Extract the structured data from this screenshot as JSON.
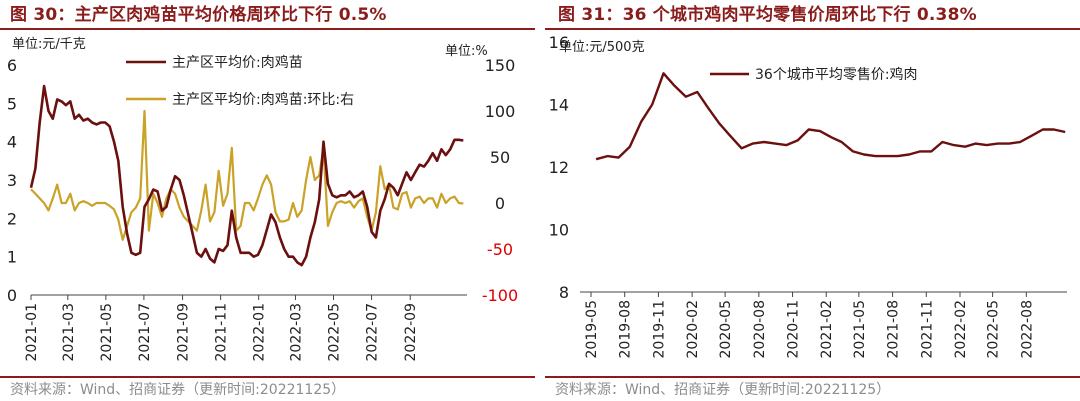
{
  "left": {
    "figure_title": "图 30：主产区肉鸡苗平均价格周环比下行 0.5%",
    "source": "资料来源：Wind、招商证券（更新时间:20221125）",
    "colors": {
      "line1": "#6b0f0f",
      "line2": "#c9a227",
      "right_negative_tick": "#e00000",
      "title": "#8a1c1c"
    }
  },
  "right": {
    "figure_title": "图 31：36 个城市鸡肉平均零售价周环比下行 0.38%",
    "source": "资料来源：Wind、招商证券（更新时间:20221125）",
    "colors": {
      "line1": "#6b0f0f"
    }
  },
  "chart_data": [
    {
      "type": "line",
      "ylabel": "单位:元/千克",
      "ylabel_right": "单位:%",
      "ylim": [
        0,
        6
      ],
      "ylim_right": [
        -100,
        150
      ],
      "yticks": [
        "0",
        "1",
        "2",
        "3",
        "4",
        "5",
        "6"
      ],
      "yticks_right": [
        "-100",
        "-50",
        "0",
        "50",
        "100",
        "150"
      ],
      "xticks": [
        "2021-01",
        "2021-03",
        "2021-05",
        "2021-07",
        "2021-09",
        "2021-11",
        "2022-01",
        "2022-03",
        "2022-05",
        "2022-07",
        "2022-09"
      ],
      "legend": "top-center",
      "grid": false,
      "series": [
        {
          "name": "主产区平均价:肉鸡苗",
          "axis": "left",
          "x": [
            "2021-01-01",
            "2021-01-08",
            "2021-01-15",
            "2021-01-22",
            "2021-01-29",
            "2021-02-05",
            "2021-02-12",
            "2021-02-19",
            "2021-02-26",
            "2021-03-05",
            "2021-03-12",
            "2021-03-19",
            "2021-03-26",
            "2021-04-02",
            "2021-04-09",
            "2021-04-16",
            "2021-04-23",
            "2021-04-30",
            "2021-05-07",
            "2021-05-14",
            "2021-05-21",
            "2021-05-28",
            "2021-06-04",
            "2021-06-11",
            "2021-06-18",
            "2021-06-25",
            "2021-07-02",
            "2021-07-09",
            "2021-07-16",
            "2021-07-23",
            "2021-07-30",
            "2021-08-06",
            "2021-08-13",
            "2021-08-20",
            "2021-08-27",
            "2021-09-03",
            "2021-09-10",
            "2021-09-17",
            "2021-09-24",
            "2021-10-01",
            "2021-10-08",
            "2021-10-15",
            "2021-10-22",
            "2021-10-29",
            "2021-11-05",
            "2021-11-12",
            "2021-11-19",
            "2021-11-26",
            "2021-12-03",
            "2021-12-10",
            "2021-12-17",
            "2021-12-24",
            "2021-12-31",
            "2022-01-07",
            "2022-01-14",
            "2022-01-21",
            "2022-01-28",
            "2022-02-04",
            "2022-02-11",
            "2022-02-18",
            "2022-02-25",
            "2022-03-04",
            "2022-03-11",
            "2022-03-18",
            "2022-03-25",
            "2022-04-01",
            "2022-04-08",
            "2022-04-15",
            "2022-04-22",
            "2022-04-29",
            "2022-05-06",
            "2022-05-13",
            "2022-05-20",
            "2022-05-27",
            "2022-06-03",
            "2022-06-10",
            "2022-06-17",
            "2022-06-24",
            "2022-07-01",
            "2022-07-08",
            "2022-07-15",
            "2022-07-22",
            "2022-07-29",
            "2022-08-05",
            "2022-08-12",
            "2022-08-19",
            "2022-08-26",
            "2022-09-02",
            "2022-09-09",
            "2022-09-16",
            "2022-09-23",
            "2022-09-30",
            "2022-10-07",
            "2022-10-14",
            "2022-10-21",
            "2022-10-28",
            "2022-11-04",
            "2022-11-11",
            "2022-11-18",
            "2022-11-25"
          ],
          "values": [
            2.8,
            3.3,
            4.5,
            5.45,
            4.8,
            4.6,
            5.1,
            5.05,
            4.95,
            5.05,
            4.6,
            4.7,
            4.55,
            4.6,
            4.5,
            4.45,
            4.5,
            4.5,
            4.4,
            4.0,
            3.5,
            2.3,
            1.6,
            1.1,
            1.05,
            1.1,
            2.3,
            2.5,
            2.75,
            2.7,
            2.2,
            2.3,
            2.75,
            3.1,
            3.0,
            2.6,
            2.1,
            1.6,
            1.1,
            1.0,
            1.2,
            0.95,
            0.85,
            1.2,
            1.15,
            1.3,
            2.2,
            1.5,
            1.1,
            1.1,
            1.1,
            1.0,
            1.05,
            1.3,
            1.7,
            2.1,
            1.9,
            1.5,
            1.2,
            1.0,
            1.0,
            0.85,
            0.78,
            1.0,
            1.5,
            1.9,
            2.5,
            4.0,
            2.9,
            2.6,
            2.55,
            2.6,
            2.6,
            2.7,
            2.55,
            2.6,
            2.7,
            2.3,
            1.65,
            1.5,
            2.2,
            2.5,
            2.9,
            2.8,
            2.6,
            2.9,
            3.2,
            3.0,
            3.2,
            3.4,
            3.35,
            3.5,
            3.7,
            3.5,
            3.8,
            3.65,
            3.8,
            4.05,
            4.05,
            4.03
          ]
        },
        {
          "name": "主产区平均价:肉鸡苗:环比:右",
          "axis": "right",
          "x": [
            "2021-01-01",
            "2021-01-08",
            "2021-01-15",
            "2021-01-22",
            "2021-01-29",
            "2021-02-05",
            "2021-02-12",
            "2021-02-19",
            "2021-02-26",
            "2021-03-05",
            "2021-03-12",
            "2021-03-19",
            "2021-03-26",
            "2021-04-02",
            "2021-04-09",
            "2021-04-16",
            "2021-04-23",
            "2021-04-30",
            "2021-05-07",
            "2021-05-14",
            "2021-05-21",
            "2021-05-28",
            "2021-06-04",
            "2021-06-11",
            "2021-06-18",
            "2021-06-25",
            "2021-07-02",
            "2021-07-09",
            "2021-07-16",
            "2021-07-23",
            "2021-07-30",
            "2021-08-06",
            "2021-08-13",
            "2021-08-20",
            "2021-08-27",
            "2021-09-03",
            "2021-09-10",
            "2021-09-17",
            "2021-09-24",
            "2021-10-01",
            "2021-10-08",
            "2021-10-15",
            "2021-10-22",
            "2021-10-29",
            "2021-11-05",
            "2021-11-12",
            "2021-11-19",
            "2021-11-26",
            "2021-12-03",
            "2021-12-10",
            "2021-12-17",
            "2021-12-24",
            "2021-12-31",
            "2022-01-07",
            "2022-01-14",
            "2022-01-21",
            "2022-01-28",
            "2022-02-04",
            "2022-02-11",
            "2022-02-18",
            "2022-02-25",
            "2022-03-04",
            "2022-03-11",
            "2022-03-18",
            "2022-03-25",
            "2022-04-01",
            "2022-04-08",
            "2022-04-15",
            "2022-04-22",
            "2022-04-29",
            "2022-05-06",
            "2022-05-13",
            "2022-05-20",
            "2022-05-27",
            "2022-06-03",
            "2022-06-10",
            "2022-06-17",
            "2022-06-24",
            "2022-07-01",
            "2022-07-08",
            "2022-07-15",
            "2022-07-22",
            "2022-07-29",
            "2022-08-05",
            "2022-08-12",
            "2022-08-19",
            "2022-08-26",
            "2022-09-02",
            "2022-09-09",
            "2022-09-16",
            "2022-09-23",
            "2022-09-30",
            "2022-10-07",
            "2022-10-14",
            "2022-10-21",
            "2022-10-28",
            "2022-11-04",
            "2022-11-11",
            "2022-11-18",
            "2022-11-25"
          ],
          "values": [
            15,
            10,
            5,
            0,
            -8,
            5,
            20,
            0,
            0,
            10,
            -8,
            0,
            2,
            0,
            -3,
            0,
            0,
            0,
            -3,
            -7,
            -18,
            -40,
            -25,
            -10,
            -5,
            5,
            100,
            -30,
            10,
            0,
            -15,
            5,
            15,
            10,
            -5,
            -15,
            -20,
            -25,
            -30,
            -8,
            20,
            -20,
            -10,
            35,
            -3,
            10,
            60,
            -30,
            -25,
            0,
            0,
            -8,
            5,
            20,
            30,
            20,
            -10,
            -20,
            -20,
            -18,
            0,
            -15,
            -8,
            25,
            50,
            25,
            30,
            60,
            -25,
            -10,
            0,
            2,
            0,
            2,
            -5,
            2,
            5,
            -15,
            -30,
            -10,
            40,
            15,
            20,
            -5,
            -7,
            10,
            12,
            -5,
            5,
            7,
            0,
            5,
            5,
            -5,
            10,
            0,
            5,
            7,
            0,
            -0.5
          ]
        }
      ]
    },
    {
      "type": "line",
      "ylabel": "单位:元/500克",
      "ylim": [
        8,
        16
      ],
      "yticks": [
        "8",
        "10",
        "12",
        "14",
        "16"
      ],
      "xticks": [
        "2019-05",
        "2019-08",
        "2019-11",
        "2020-02",
        "2020-05",
        "2020-08",
        "2020-11",
        "2021-02",
        "2021-05",
        "2021-08",
        "2021-11",
        "2022-02",
        "2022-05",
        "2022-08"
      ],
      "legend": "top-center",
      "grid": false,
      "series": [
        {
          "name": "36个城市平均零售价:鸡肉",
          "x": [
            "2019-05",
            "2019-06",
            "2019-07",
            "2019-08",
            "2019-09",
            "2019-10",
            "2019-11",
            "2019-12",
            "2020-01",
            "2020-02",
            "2020-03",
            "2020-04",
            "2020-05",
            "2020-06",
            "2020-07",
            "2020-08",
            "2020-09",
            "2020-10",
            "2020-11",
            "2020-12",
            "2021-01",
            "2021-02",
            "2021-03",
            "2021-04",
            "2021-05",
            "2021-06",
            "2021-07",
            "2021-08",
            "2021-09",
            "2021-10",
            "2021-11",
            "2021-12",
            "2022-01",
            "2022-02",
            "2022-03",
            "2022-04",
            "2022-05",
            "2022-06",
            "2022-07",
            "2022-08",
            "2022-09",
            "2022-10",
            "2022-11"
          ],
          "values": [
            12.25,
            12.35,
            12.3,
            12.65,
            13.45,
            14.0,
            15.0,
            14.6,
            14.25,
            14.4,
            13.9,
            13.4,
            13.0,
            12.6,
            12.75,
            12.8,
            12.75,
            12.7,
            12.85,
            13.2,
            13.15,
            12.95,
            12.8,
            12.5,
            12.4,
            12.35,
            12.35,
            12.35,
            12.4,
            12.5,
            12.5,
            12.8,
            12.7,
            12.65,
            12.75,
            12.7,
            12.75,
            12.75,
            12.8,
            13.0,
            13.2,
            13.2,
            13.12
          ]
        }
      ]
    }
  ]
}
